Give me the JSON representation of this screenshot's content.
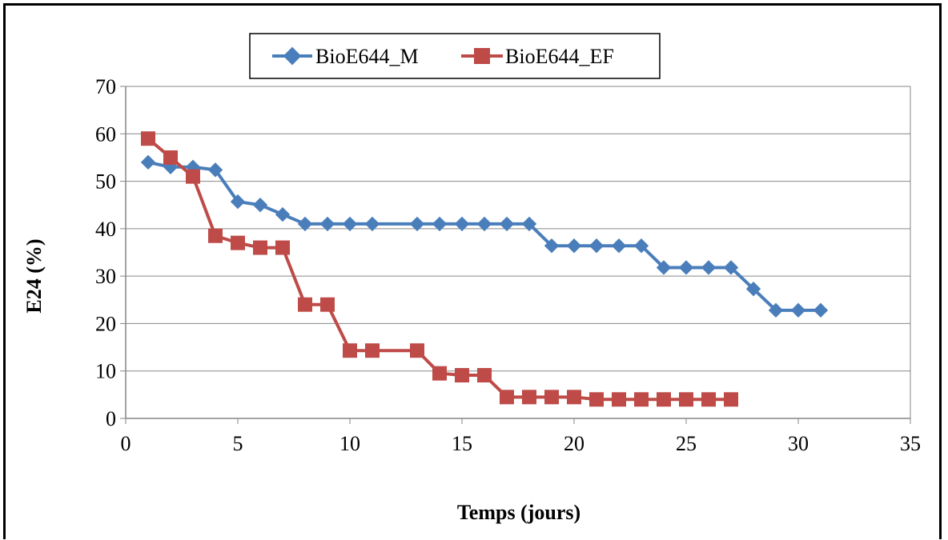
{
  "chart_data": {
    "type": "line",
    "xlabel": "Temps (jours)",
    "ylabel": "E24 (%)",
    "xlim": [
      0,
      35
    ],
    "ylim": [
      0,
      70
    ],
    "xticks": [
      0,
      5,
      10,
      15,
      20,
      25,
      30,
      35
    ],
    "yticks": [
      0,
      10,
      20,
      30,
      40,
      50,
      60,
      70
    ],
    "grid": "horizontal",
    "legend_position": "top",
    "series": [
      {
        "name": "BioE644_M",
        "color": "#4a7ebb",
        "marker": "diamond",
        "x": [
          1,
          2,
          3,
          4,
          5,
          6,
          7,
          8,
          9,
          10,
          11,
          13,
          14,
          15,
          16,
          17,
          18,
          19,
          20,
          21,
          22,
          23,
          24,
          25,
          26,
          27,
          28,
          29,
          30,
          31
        ],
        "y": [
          54,
          53,
          53,
          52.4,
          45.7,
          45,
          43,
          41,
          41,
          41,
          41,
          41,
          41,
          41,
          41,
          41,
          41,
          36.4,
          36.4,
          36.4,
          36.4,
          36.4,
          31.8,
          31.8,
          31.8,
          31.8,
          27.3,
          22.8,
          22.8,
          22.8
        ]
      },
      {
        "name": "BioE644_EF",
        "color": "#be4b48",
        "marker": "square",
        "x": [
          1,
          2,
          3,
          4,
          5,
          6,
          7,
          8,
          9,
          10,
          11,
          13,
          14,
          15,
          16,
          17,
          18,
          19,
          20,
          21,
          22,
          23,
          24,
          25,
          26,
          27
        ],
        "y": [
          59,
          55,
          51,
          38.5,
          37,
          36,
          36,
          24,
          24,
          14.3,
          14.3,
          14.3,
          9.5,
          9.1,
          9.1,
          4.5,
          4.5,
          4.5,
          4.5,
          4,
          4,
          4,
          4,
          4,
          4,
          4
        ]
      }
    ]
  }
}
